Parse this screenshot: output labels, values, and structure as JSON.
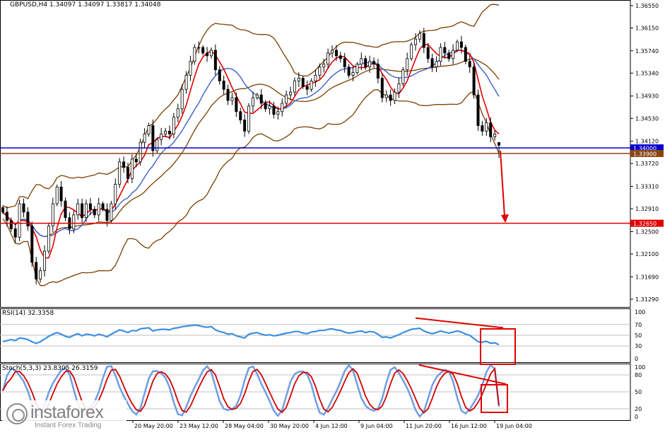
{
  "header": {
    "main": "GBPUSD,H4  1.34097 1.34097 1.33817 1.34048",
    "rsi": "RSI(14) 32.3358",
    "stoch": "Stoch(5,3,3) 23.8305 26.3159"
  },
  "logo": {
    "name": "instaforex",
    "tagline": "Instant Forex Trading"
  },
  "x_labels": [
    "",
    "20 May 20:00",
    "23 May 12:00",
    "28 May 04:00",
    "30 May 20:00",
    "4 Jun 12:00",
    "9 Jun 04:00",
    "11 Jun 20:00",
    "16 Jun 12:00",
    "19 Jun 04:00"
  ],
  "colors": {
    "candle": "#000000",
    "bollinger": "#7b3f00",
    "ma_fast": "#e00000",
    "ma_slow": "#3a5fcd",
    "rsi_line": "#3d8fe0",
    "stoch_main": "#6f9ee3",
    "stoch_signal": "#d00000",
    "support_line": "#e00000",
    "blue_line": "#0000cc",
    "brown_line": "#8b4513",
    "annotation": "#e00000"
  },
  "chart_data": [
    {
      "type": "candlestick",
      "symbol": "GBPUSD",
      "timeframe": "H4",
      "ohlc_last": {
        "open": 1.34097,
        "high": 1.34097,
        "low": 1.33817,
        "close": 1.34048
      },
      "y_ticks": [
        "1.36550",
        "1.36150",
        "1.35740",
        "1.35340",
        "1.34930",
        "1.34530",
        "1.34120",
        "1.33720",
        "1.33310",
        "1.32910",
        "1.32500",
        "1.32100",
        "1.31690",
        "1.31290"
      ],
      "ylim": [
        1.3115,
        1.3665
      ],
      "horizontal_levels": [
        {
          "value": 1.34,
          "label": "1.34000",
          "color": "#0000cc"
        },
        {
          "value": 1.339,
          "label": "1.33900",
          "color": "#8b4513"
        },
        {
          "value": 1.3265,
          "label": "1.32650",
          "color": "#e00000"
        }
      ],
      "closes": [
        1.3285,
        1.327,
        1.3255,
        1.324,
        1.33,
        1.3285,
        1.326,
        1.3195,
        1.3165,
        1.318,
        1.3215,
        1.326,
        1.33,
        1.333,
        1.3305,
        1.3275,
        1.3255,
        1.328,
        1.33,
        1.3275,
        1.33,
        1.329,
        1.328,
        1.33,
        1.329,
        1.327,
        1.33,
        1.3335,
        1.3375,
        1.3365,
        1.3345,
        1.338,
        1.3375,
        1.341,
        1.3425,
        1.344,
        1.3395,
        1.3415,
        1.3425,
        1.343,
        1.3425,
        1.3455,
        1.347,
        1.3505,
        1.353,
        1.3555,
        1.358,
        1.358,
        1.357,
        1.3565,
        1.3575,
        1.354,
        1.352,
        1.3505,
        1.3485,
        1.349,
        1.3465,
        1.345,
        1.343,
        1.3475,
        1.349,
        1.3495,
        1.348,
        1.347,
        1.3475,
        1.346,
        1.3465,
        1.348,
        1.3495,
        1.35,
        1.352,
        1.3525,
        1.351,
        1.3505,
        1.352,
        1.353,
        1.3545,
        1.355,
        1.357,
        1.3575,
        1.3565,
        1.356,
        1.3545,
        1.353,
        1.3535,
        1.355,
        1.356,
        1.3545,
        1.3555,
        1.355,
        1.3525,
        1.349,
        1.3495,
        1.3485,
        1.35,
        1.3515,
        1.354,
        1.356,
        1.3585,
        1.3595,
        1.3605,
        1.358,
        1.356,
        1.3545,
        1.3555,
        1.358,
        1.357,
        1.356,
        1.3575,
        1.359,
        1.358,
        1.3555,
        1.3545,
        1.3495,
        1.344,
        1.343,
        1.3445,
        1.342,
        1.3425,
        1.3405
      ]
    },
    {
      "type": "line",
      "name": "RSI(14)",
      "last": 32.3358,
      "y_ticks": [
        "100",
        "70",
        "50",
        "30",
        "0"
      ],
      "levels": [
        70,
        50,
        30
      ],
      "ylim": [
        0,
        100
      ],
      "values": [
        38,
        40,
        42,
        40,
        45,
        44,
        42,
        38,
        35,
        38,
        43,
        48,
        52,
        55,
        52,
        48,
        46,
        50,
        53,
        49,
        52,
        51,
        49,
        52,
        50,
        47,
        52,
        56,
        60,
        58,
        55,
        59,
        58,
        62,
        63,
        64,
        58,
        60,
        61,
        61,
        60,
        63,
        64,
        66,
        67,
        68,
        69,
        68,
        66,
        65,
        66,
        60,
        57,
        55,
        52,
        53,
        49,
        47,
        45,
        52,
        54,
        55,
        52,
        50,
        51,
        49,
        50,
        52,
        54,
        55,
        57,
        57,
        54,
        53,
        56,
        57,
        59,
        59,
        61,
        62,
        60,
        59,
        56,
        54,
        55,
        57,
        58,
        55,
        57,
        56,
        52,
        46,
        47,
        45,
        48,
        51,
        55,
        58,
        61,
        62,
        63,
        58,
        55,
        53,
        55,
        58,
        56,
        54,
        56,
        58,
        56,
        52,
        50,
        44,
        38,
        37,
        39,
        35,
        36,
        32.3358
      ]
    },
    {
      "type": "line",
      "name": "Stoch(5,3,3)",
      "series": [
        {
          "name": "main",
          "last": 23.8305
        },
        {
          "name": "signal",
          "last": 26.3159
        }
      ],
      "y_ticks": [
        "100",
        "80",
        "50",
        "20",
        "0"
      ],
      "levels": [
        80,
        50,
        20
      ],
      "ylim": [
        0,
        100
      ]
    }
  ]
}
